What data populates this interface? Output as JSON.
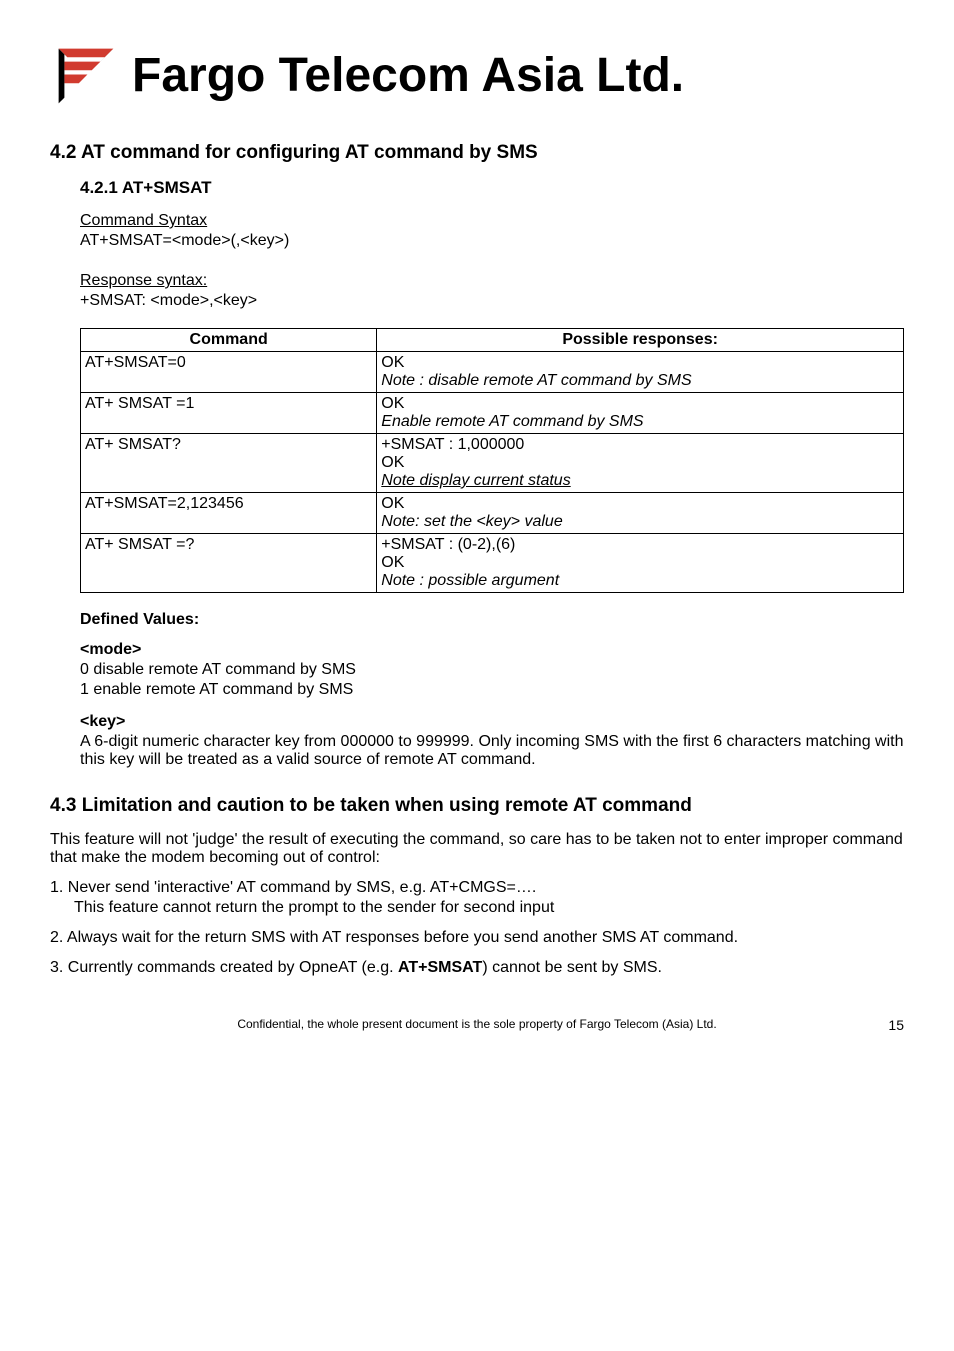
{
  "logo": {
    "company": "Fargo Telecom Asia Ltd.",
    "stripes": [
      "#d13b2f",
      "#d13b2f",
      "#d13b2f"
    ]
  },
  "section42": {
    "heading": "4.2 AT command for configuring AT command by SMS",
    "subheading": "4.2.1    AT+SMSAT",
    "cmdsyntax_label": "Command Syntax",
    "cmdsyntax": "AT+SMSAT=<mode>(,<key>)",
    "respsyntax_label": "Response syntax:",
    "respsyntax": "+SMSAT: <mode>,<key>",
    "table": {
      "header_cmd": "Command",
      "header_resp": "Possible responses:",
      "rows": [
        {
          "cmd": "AT+SMSAT=0",
          "resp_lines": [
            {
              "text": "OK",
              "style": ""
            },
            {
              "text": "Note : disable remote AT command by SMS",
              "style": "italic"
            }
          ]
        },
        {
          "cmd": "AT+ SMSAT =1",
          "resp_lines": [
            {
              "text": "OK",
              "style": ""
            },
            {
              "text": "Enable remote AT command by SMS",
              "style": "italic"
            }
          ]
        },
        {
          "cmd": "AT+ SMSAT?",
          "resp_lines": [
            {
              "text": "+SMSAT : 1,000000",
              "style": ""
            },
            {
              "text": "OK",
              "style": ""
            },
            {
              "text": "Note display current status",
              "style": "italic u"
            }
          ]
        },
        {
          "cmd": "AT+SMSAT=2,123456",
          "resp_lines": [
            {
              "text": "OK",
              "style": ""
            },
            {
              "text": "Note: set the <key> value",
              "style": "italic"
            }
          ]
        },
        {
          "cmd": "AT+ SMSAT =?",
          "resp_lines": [
            {
              "text": "+SMSAT :  (0-2),(6)",
              "style": ""
            },
            {
              "text": "OK",
              "style": ""
            },
            {
              "text": "Note : possible argument",
              "style": "italic"
            }
          ]
        }
      ]
    },
    "defined_values_label": "Defined Values:",
    "mode_label": "<mode>",
    "mode_0": "0   disable remote AT command by SMS",
    "mode_1": "1   enable remote AT command by SMS",
    "key_label": "<key>",
    "key_desc": "A 6-digit numeric character key from 000000 to 999999.  Only incoming SMS with the first 6 characters matching with this key will be treated as a valid source of remote AT command."
  },
  "section43": {
    "heading": "4.3 Limitation and caution to be taken when using remote AT command",
    "intro": "This feature will not 'judge' the result of executing the command, so care has to be taken not to enter improper command that make the modem becoming out of control:",
    "item1": "1. Never send 'interactive' AT command by SMS, e.g. AT+CMGS=….",
    "item1sub": "This feature cannot return the prompt to the sender for second input",
    "item2": "2. Always wait for the return SMS with AT responses  before you send another SMS AT command.",
    "item3_pre": "3. Currently commands created by OpneAT (e.g. ",
    "item3_bold": "AT+SMSAT",
    "item3_post": ") cannot be sent by SMS."
  },
  "footer": {
    "text": "Confidential, the whole present document is the sole property of Fargo Telecom (Asia) Ltd.",
    "page": "15"
  }
}
